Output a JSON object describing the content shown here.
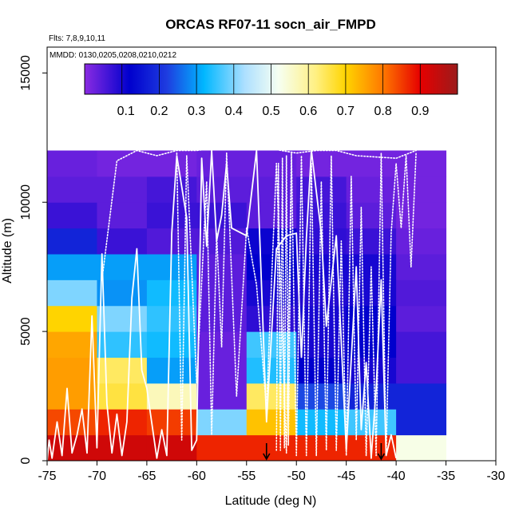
{
  "chart_data": {
    "type": "heatmap",
    "title": "ORCAS RF07-11 socn_air_FMPD",
    "annotation_flights": "Flts: 7,8,9,10,11",
    "annotation_dates": "MMDD: 0130,0205,0208,0210,0212",
    "xlabel": "Latitude (deg N)",
    "ylabel": "Altitude (m)",
    "xlim": [
      -75,
      -30
    ],
    "ylim": [
      0,
      16000
    ],
    "x_ticks": [
      -75,
      -70,
      -65,
      -60,
      -55,
      -50,
      -45,
      -40,
      -35,
      -30
    ],
    "x_tick_labels": [
      "-75",
      "-70",
      "-65",
      "-60",
      "-55",
      "-50",
      "-45",
      "-40",
      "-35",
      "-30"
    ],
    "y_ticks": [
      0,
      5000,
      10000,
      15000
    ],
    "y_tick_labels": [
      "0",
      "5000",
      "10000",
      "15000"
    ],
    "colorbar": {
      "range": [
        0,
        1
      ],
      "ticks": [
        0.1,
        0.2,
        0.3,
        0.4,
        0.5,
        0.6,
        0.7,
        0.8,
        0.9
      ],
      "tick_labels": [
        "0.1",
        "0.2",
        "0.3",
        "0.4",
        "0.5",
        "0.6",
        "0.7",
        "0.8",
        "0.9"
      ]
    },
    "lat_bin_edges": [
      -75,
      -70,
      -65,
      -60,
      -55,
      -50,
      -45,
      -40,
      -35
    ],
    "alt_bin_size_m": 1000,
    "alt_bins_bottom_up": [
      [
        0.93,
        0.93,
        0.93,
        0.87,
        0.87,
        0.87,
        0.87,
        0.53
      ],
      [
        0.84,
        0.87,
        0.85,
        0.4,
        0.72,
        0.33,
        0.36,
        0.18
      ],
      [
        0.76,
        0.66,
        0.57,
        0.03,
        0.64,
        0.23,
        0.18,
        0.18
      ],
      [
        0.76,
        0.64,
        0.3,
        0.03,
        0.34,
        0.12,
        0.1,
        0.06
      ],
      [
        0.75,
        0.35,
        0.33,
        0.03,
        0.36,
        0.1,
        0.12,
        0.06
      ],
      [
        0.7,
        0.4,
        0.35,
        0.04,
        0.08,
        0.1,
        0.12,
        0.04
      ],
      [
        0.4,
        0.29,
        0.33,
        0.04,
        0.1,
        0.09,
        0.1,
        0.05
      ],
      [
        0.3,
        0.3,
        0.3,
        0.04,
        0.12,
        0.1,
        0.1,
        0.04
      ],
      [
        0.18,
        0.07,
        0.05,
        0.05,
        0.11,
        0.08,
        0.07,
        0.03
      ],
      [
        0.07,
        0.04,
        0.07,
        0.07,
        0.04,
        0.07,
        0.04,
        0.02
      ],
      [
        0.04,
        0.04,
        0.06,
        0.04,
        0.04,
        0.06,
        0.03,
        0.02
      ],
      [
        0.03,
        0.02,
        0.02,
        0.03,
        0.03,
        0.02,
        0.02,
        0.02
      ]
    ],
    "marker_arrows_lat": [
      -53,
      -41.5
    ],
    "flight_tracks": [
      {
        "style": "solid",
        "points": [
          [
            -75,
            0
          ],
          [
            -74.8,
            800
          ],
          [
            -74.5,
            100
          ],
          [
            -74,
            1500
          ],
          [
            -73.5,
            200
          ],
          [
            -73,
            2800
          ],
          [
            -72.5,
            300
          ],
          [
            -72,
            1000
          ],
          [
            -71.5,
            2000
          ],
          [
            -71,
            300
          ],
          [
            -70.5,
            5600
          ],
          [
            -70,
            500
          ],
          [
            -69.5,
            8000
          ],
          [
            -69,
            2200
          ],
          [
            -68.5,
            300
          ],
          [
            -68,
            1800
          ],
          [
            -67.5,
            200
          ],
          [
            -67,
            1500
          ],
          [
            -66.5,
            6300
          ],
          [
            -66,
            8200
          ],
          [
            -65.5,
            3500
          ],
          [
            -65,
            2800
          ],
          [
            -64,
            100
          ],
          [
            -63.5,
            1200
          ],
          [
            -63,
            200
          ],
          [
            -62.5,
            8800
          ],
          [
            -62,
            11800
          ],
          [
            -61,
            9400
          ],
          [
            -60.5,
            400
          ],
          [
            -60,
            800
          ],
          [
            -59.5,
            11700
          ],
          [
            -59,
            8300
          ],
          [
            -58.5,
            12000
          ],
          [
            -58,
            8500
          ],
          [
            -57.5,
            9500
          ],
          [
            -57,
            11500
          ],
          [
            -56.5,
            9000
          ],
          [
            -55,
            8700
          ],
          [
            -54,
            12000
          ],
          [
            -53,
            1500
          ],
          [
            -52,
            8200
          ],
          [
            -51,
            8700
          ],
          [
            -50,
            8800
          ],
          [
            -49.5,
            4000
          ],
          [
            -49,
            8600
          ],
          [
            -48.5,
            12000
          ],
          [
            -47.5,
            8800
          ],
          [
            -47,
            5200
          ],
          [
            -46,
            8700
          ],
          [
            -45,
            400
          ],
          [
            -44,
            7500
          ],
          [
            -43.5,
            1200
          ],
          [
            -43,
            3800
          ],
          [
            -42.5,
            100
          ],
          [
            -42,
            2800
          ],
          [
            -41.5,
            7000
          ],
          [
            -41,
            200
          ],
          [
            -40.5,
            1000
          ],
          [
            -40,
            100
          ]
        ]
      },
      {
        "style": "dotted",
        "points": [
          [
            -69.5,
            7000
          ],
          [
            -68,
            11600
          ],
          [
            -66,
            12000
          ],
          [
            -64,
            11800
          ],
          [
            -62,
            12000
          ],
          [
            -60,
            12000
          ],
          [
            -58,
            12100
          ],
          [
            -56,
            12100
          ],
          [
            -53,
            12100
          ],
          [
            -50,
            11900
          ],
          [
            -48,
            12000
          ],
          [
            -46,
            12000
          ],
          [
            -44,
            11800
          ],
          [
            -40,
            11700
          ],
          [
            -38,
            12000
          ]
        ]
      },
      {
        "style": "dotted",
        "points": [
          [
            -62,
            11900
          ],
          [
            -61.5,
            800
          ],
          [
            -61,
            11800
          ],
          [
            -60,
            3000
          ],
          [
            -59,
            10800
          ],
          [
            -58.5,
            1000
          ],
          [
            -58,
            8800
          ],
          [
            -57.5,
            4400
          ],
          [
            -57,
            11900
          ],
          [
            -56,
            2500
          ],
          [
            -55,
            9000
          ],
          [
            -54,
            6800
          ],
          [
            -53,
            2000
          ],
          [
            -52.5,
            6900
          ],
          [
            -52,
            11500
          ],
          [
            -51,
            300
          ],
          [
            -50.5,
            11900
          ],
          [
            -50,
            200
          ],
          [
            -49.5,
            11800
          ],
          [
            -49,
            200
          ],
          [
            -48.5,
            11500
          ],
          [
            -48,
            200
          ],
          [
            -47.5,
            10800
          ],
          [
            -47,
            400
          ],
          [
            -46.5,
            11800
          ],
          [
            -46,
            400
          ],
          [
            -45.5,
            8500
          ],
          [
            -45,
            200
          ],
          [
            -44.5,
            11000
          ],
          [
            -44,
            800
          ],
          [
            -43.5,
            9800
          ],
          [
            -43,
            200
          ],
          [
            -42.5,
            7500
          ],
          [
            -42,
            200
          ],
          [
            -41.5,
            11900
          ],
          [
            -41,
            200
          ],
          [
            -40.5,
            8800
          ],
          [
            -40,
            11500
          ],
          [
            -39.5,
            9000
          ],
          [
            -39,
            11800
          ],
          [
            -38.5,
            7500
          ],
          [
            -38,
            11900
          ]
        ]
      },
      {
        "style": "dotted",
        "points": [
          [
            -52,
            400
          ],
          [
            -51.8,
            11500
          ],
          [
            -51.6,
            400
          ],
          [
            -51.4,
            11700
          ],
          [
            -51.2,
            500
          ],
          [
            -51,
            11800
          ],
          [
            -50.8,
            600
          ],
          [
            -50.5,
            11600
          ]
        ]
      }
    ]
  }
}
